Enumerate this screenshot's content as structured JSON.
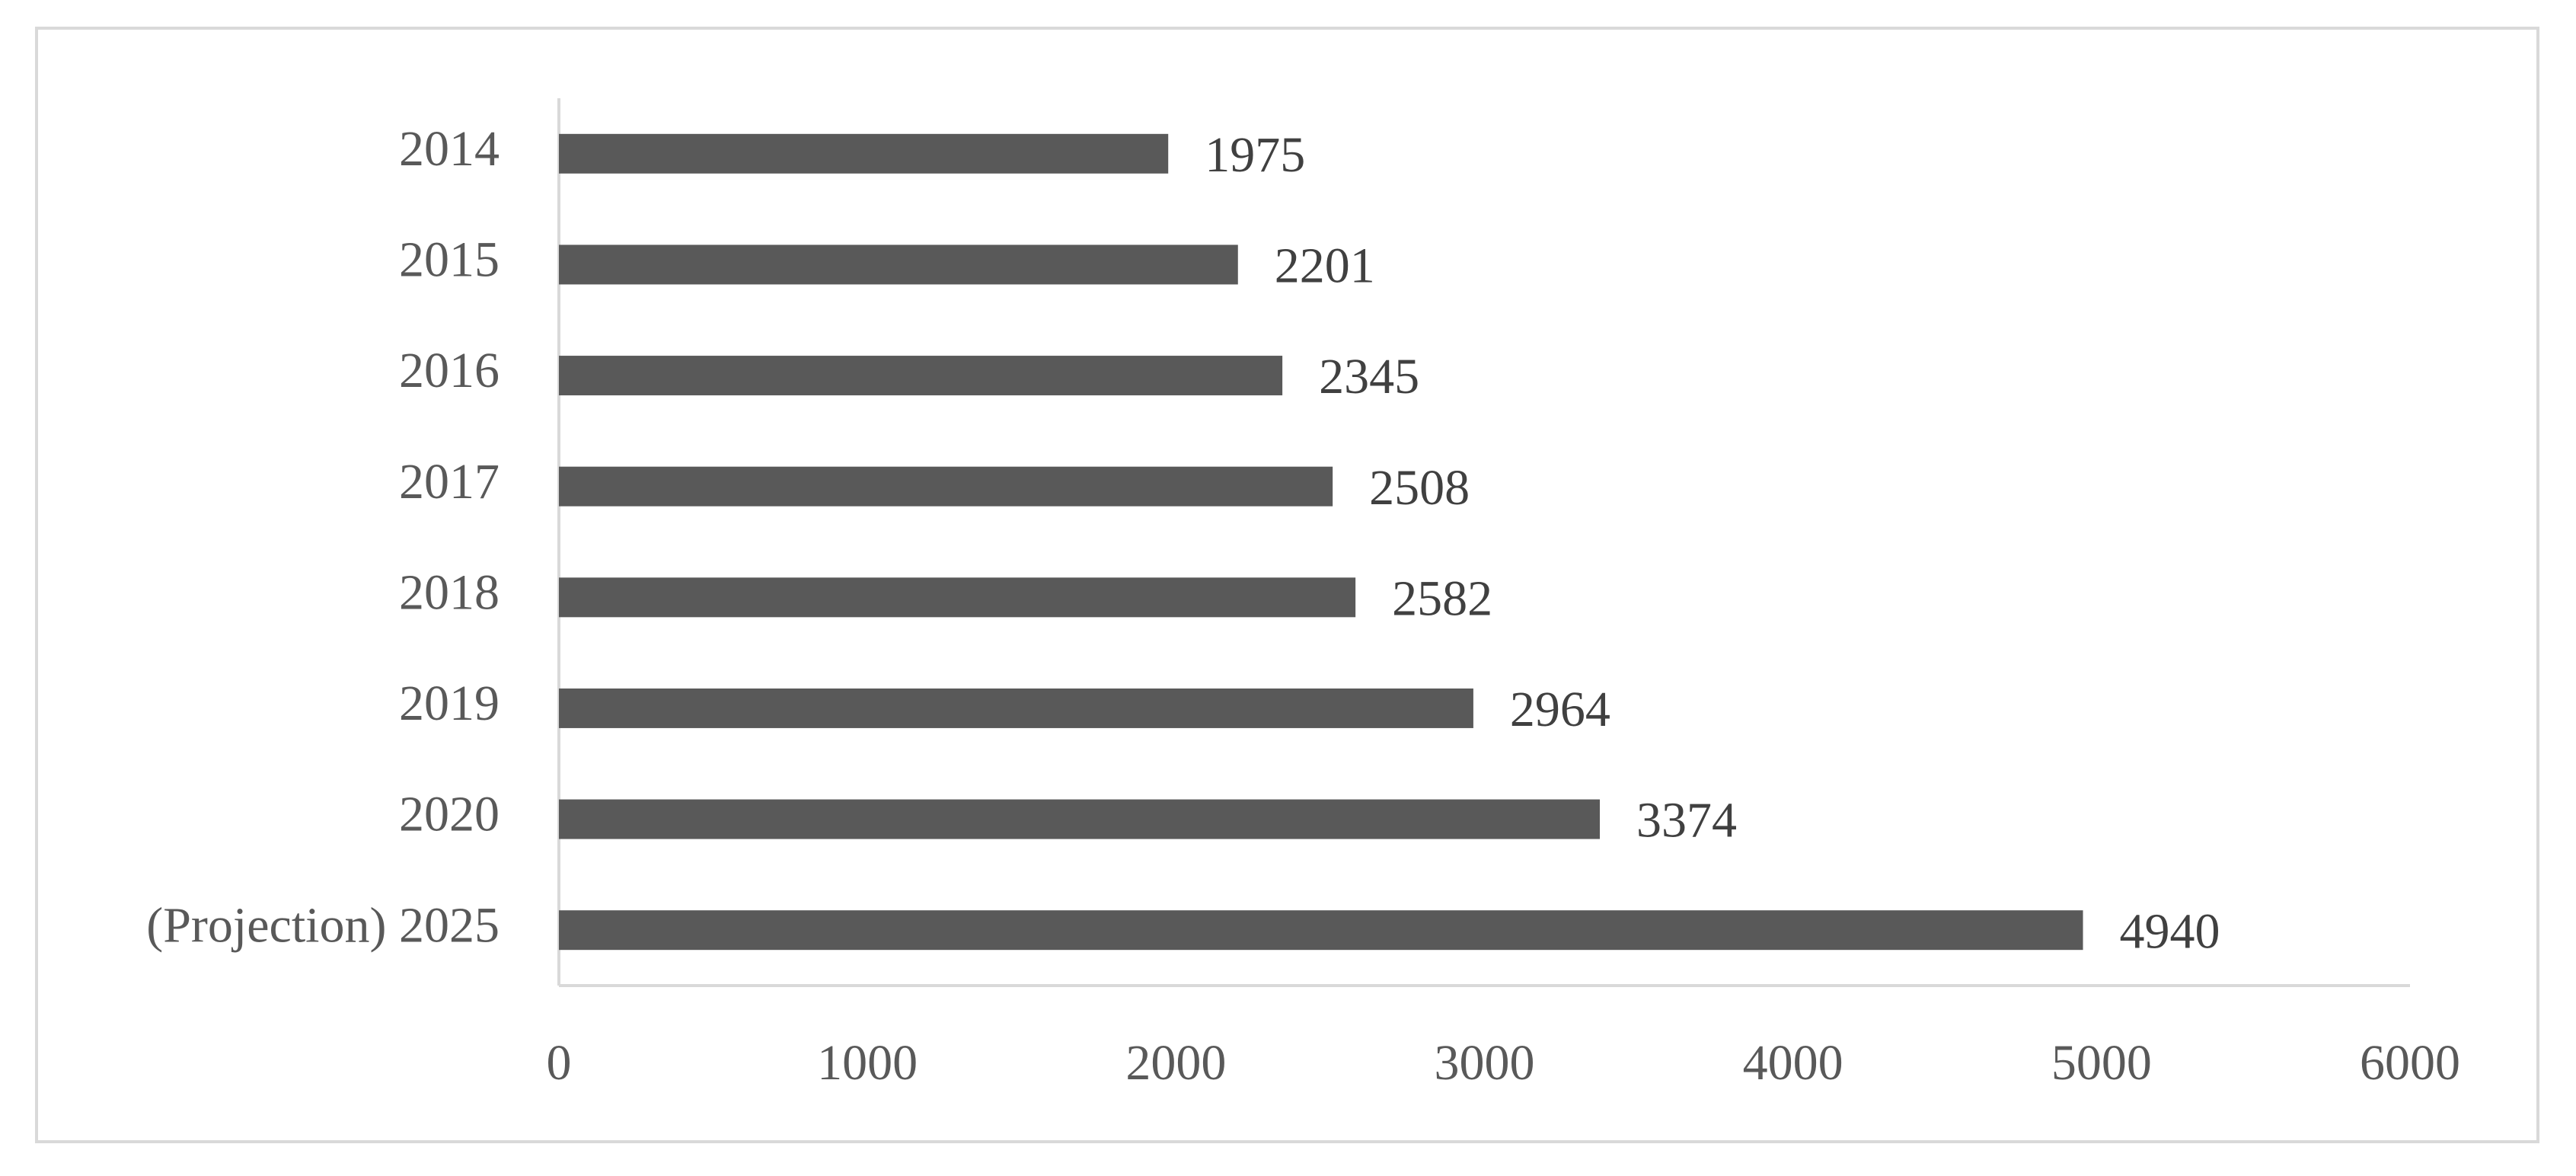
{
  "chart_data": {
    "type": "bar",
    "orientation": "horizontal",
    "categories": [
      "2014",
      "2015",
      "2016",
      "2017",
      "2018",
      "2019",
      "2020",
      "(Projection) 2025"
    ],
    "values": [
      1975,
      2201,
      2345,
      2508,
      2582,
      2964,
      3374,
      4940
    ],
    "color": "#595959",
    "xlim": [
      0,
      6000
    ],
    "xticks": [
      0,
      1000,
      2000,
      3000,
      4000,
      5000,
      6000
    ],
    "grid": false,
    "data_labels": true
  }
}
